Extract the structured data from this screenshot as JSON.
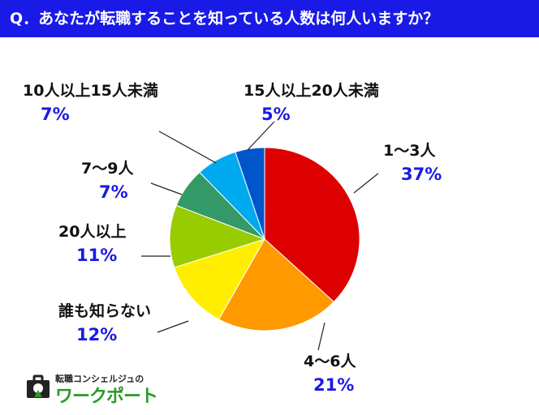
{
  "header": {
    "question": "Q．あなたが転職することを知っている人数は何人いますか？"
  },
  "logo": {
    "subtitle": "転職コンシェルジュの",
    "name": "ワークポート"
  },
  "colors": {
    "pct_text": "#1a1ae6",
    "header_bg": "#1a1ae6"
  },
  "chart_data": {
    "type": "pie",
    "start_angle": "12 o'clock",
    "direction": "clockwise",
    "slices": [
      {
        "label": "1～3人",
        "pct_text": "37%",
        "value": 37,
        "color": "#dd0000"
      },
      {
        "label": "4～6人",
        "pct_text": "21%",
        "value": 21,
        "color": "#ff9900"
      },
      {
        "label": "誰も知らない",
        "pct_text": "12%",
        "value": 12,
        "color": "#ffee00"
      },
      {
        "label": "20人以上",
        "pct_text": "11%",
        "value": 11,
        "color": "#99cc00"
      },
      {
        "label": "7～9人",
        "pct_text": "7%",
        "value": 7,
        "color": "#339966"
      },
      {
        "label": "10人以上15人未満",
        "pct_text": "7%",
        "value": 7,
        "color": "#00aaee"
      },
      {
        "label": "15人以上20人未満",
        "pct_text": "5%",
        "value": 5,
        "color": "#0055cc"
      }
    ]
  }
}
